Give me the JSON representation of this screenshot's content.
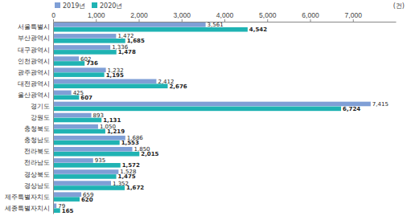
{
  "chart_data": {
    "type": "bar",
    "orientation": "horizontal",
    "xlabel": "(건)",
    "categories": [
      "서울특별시",
      "부산광역시",
      "대구광역시",
      "인천광역시",
      "광주광역시",
      "대전광역시",
      "울산광역시",
      "경기도",
      "강원도",
      "충청북도",
      "충청남도",
      "전라북도",
      "전라남도",
      "경상북도",
      "경상남도",
      "제주특별자치도",
      "세종특별자치시"
    ],
    "series": [
      {
        "name": "2019년",
        "color": "#7f9fd6",
        "values": [
          3561,
          1472,
          1336,
          602,
          1232,
          2412,
          425,
          7415,
          893,
          1050,
          1686,
          1850,
          935,
          1528,
          1352,
          659,
          79
        ],
        "value_labels": [
          "3,561",
          "1,472",
          "1,336",
          "602",
          "1,232",
          "2,412",
          "425",
          "7,415",
          "893",
          "1,050",
          "1,686",
          "1,850",
          "935",
          "1,528",
          "1,352",
          "659",
          "79"
        ]
      },
      {
        "name": "2020년",
        "color": "#1fb3b3",
        "values": [
          4542,
          1685,
          1478,
          736,
          1195,
          2676,
          607,
          6724,
          1131,
          1219,
          1553,
          2015,
          1572,
          1475,
          1672,
          620,
          165
        ],
        "value_labels": [
          "4,542",
          "1,685",
          "1,478",
          "736",
          "1,195",
          "2,676",
          "607",
          "6,724",
          "1,131",
          "1,219",
          "1,553",
          "2,015",
          "1,572",
          "1,475",
          "1,672",
          "620",
          "165"
        ]
      }
    ],
    "xlim": [
      0,
      8000
    ],
    "xticks": [
      0,
      {
        "value": 1000,
        "label": "1,000"
      },
      {
        "value": 2000,
        "label": "2,000"
      },
      {
        "value": 3000,
        "label": "3,000"
      },
      {
        "value": 4000,
        "label": "4,000"
      },
      {
        "value": 5000,
        "label": "5,000"
      },
      {
        "value": 6000,
        "label": "6,000"
      },
      {
        "value": 7000,
        "label": "7,000"
      }
    ],
    "grid": false,
    "legend": "top-left",
    "data_labels": true
  }
}
